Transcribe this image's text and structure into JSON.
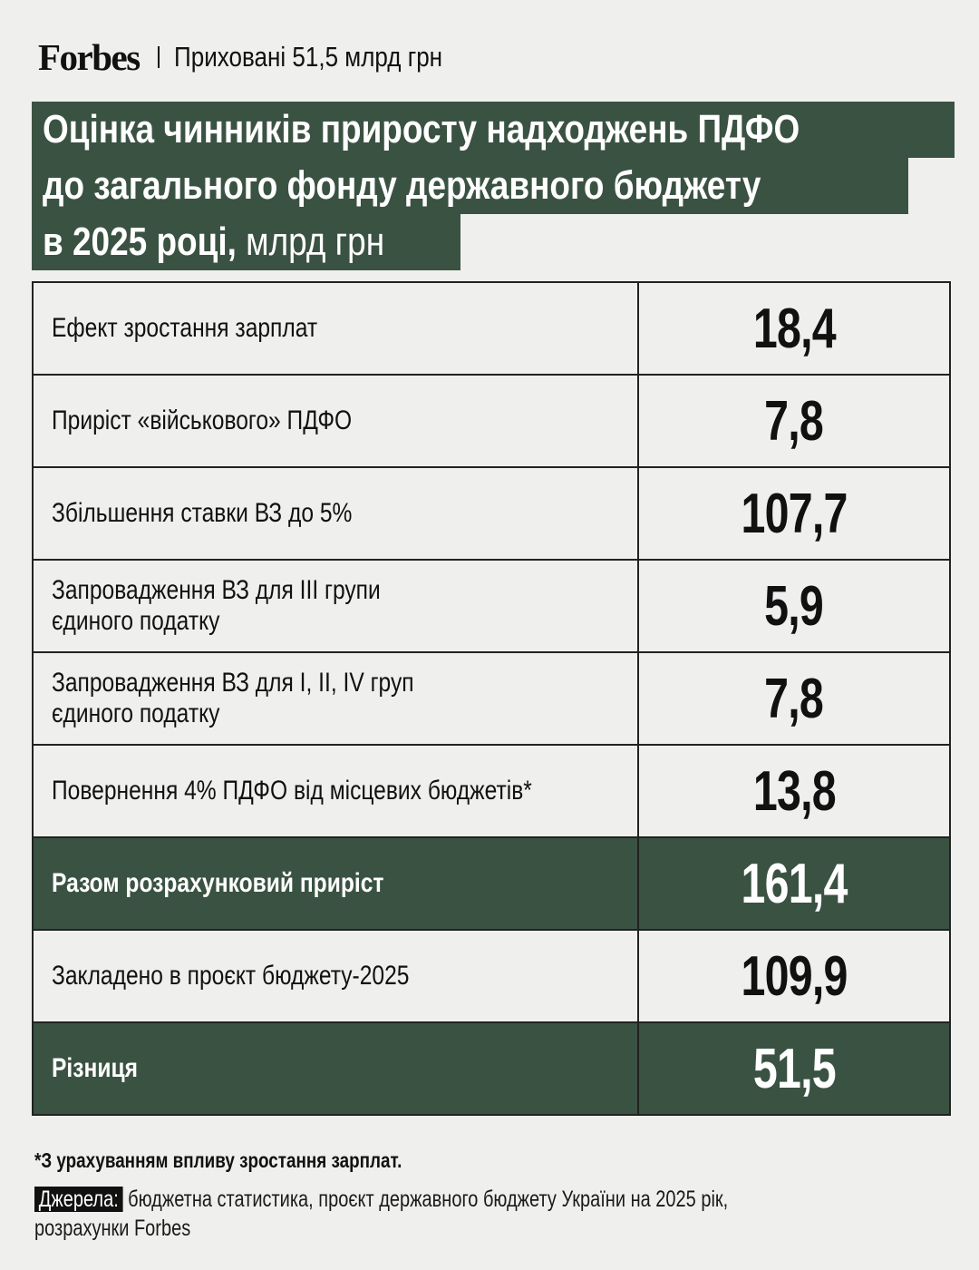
{
  "header": {
    "logo": "Forbes",
    "subtitle": "Приховані 51,5 млрд грн"
  },
  "title": {
    "line1": "Оцінка чинників приросту надходжень ПДФО",
    "line2": "до загального фонду державного бюджету",
    "line3": "в 2025 році,",
    "unit": " млрд грн"
  },
  "chart_data": {
    "type": "table",
    "title": "Оцінка чинників приросту надходжень ПДФО до загального фонду державного бюджету в 2025 році, млрд грн",
    "rows": [
      {
        "label": "Ефект зростання зарплат",
        "display": "18,4",
        "value": 18.4,
        "highlight": false
      },
      {
        "label": "Приріст «військового» ПДФО",
        "display": "7,8",
        "value": 7.8,
        "highlight": false
      },
      {
        "label": "Збільшення ставки ВЗ до 5%",
        "display": "107,7",
        "value": 107.7,
        "highlight": false
      },
      {
        "label": "Запровадження ВЗ для III групи\nєдиного податку",
        "display": "5,9",
        "value": 5.9,
        "highlight": false
      },
      {
        "label": "Запровадження ВЗ для I, II, IV груп\nєдиного податку",
        "display": "7,8",
        "value": 7.8,
        "highlight": false
      },
      {
        "label": "Повернення 4% ПДФО від місцевих бюджетів*",
        "display": "13,8",
        "value": 13.8,
        "highlight": false
      },
      {
        "label": "Разом розрахунковий приріст",
        "display": "161,4",
        "value": 161.4,
        "highlight": true
      },
      {
        "label": "Закладено в проєкт бюджету-2025",
        "display": "109,9",
        "value": 109.9,
        "highlight": false
      },
      {
        "label": "Різниця",
        "display": "51,5",
        "value": 51.5,
        "highlight": true
      }
    ]
  },
  "footer": {
    "note": "*З урахуванням впливу зростання зарплат.",
    "source_label": "Джерела:",
    "source_text": " бюджетна статистика, проєкт державного бюджету України на 2025 рік,\nрозрахунки Forbes"
  },
  "colors": {
    "background": "#efefed",
    "accent": "#3a5242",
    "text": "#111111"
  }
}
